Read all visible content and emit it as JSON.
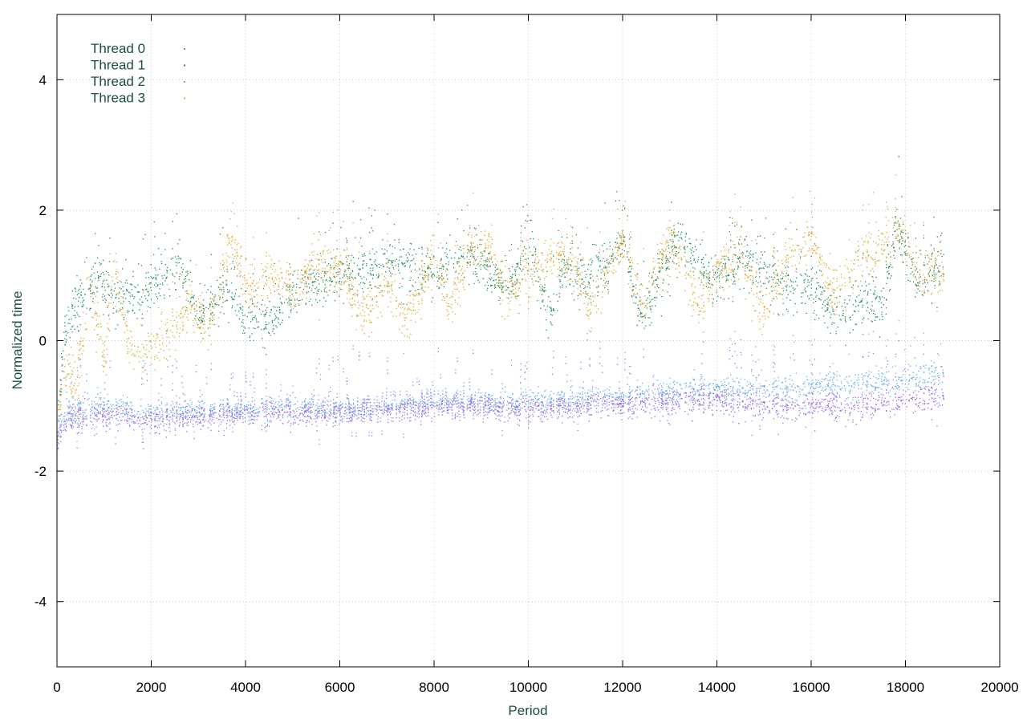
{
  "chart_data": {
    "type": "scatter",
    "title": "",
    "xlabel": "Period",
    "ylabel": "Normalized time",
    "xlim": [
      0,
      20000
    ],
    "ylim": [
      -5,
      5
    ],
    "xticks": [
      0,
      2000,
      4000,
      6000,
      8000,
      10000,
      12000,
      14000,
      16000,
      18000,
      20000
    ],
    "yticks": [
      -4,
      -2,
      0,
      2,
      4
    ],
    "grid": true,
    "legend": "top-left",
    "x_range_of_data": [
      0,
      18800
    ],
    "series": [
      {
        "name": "Thread 0",
        "color": "#9b6bea",
        "trend": [
          [
            0,
            -1.6
          ],
          [
            200,
            -1.2
          ],
          [
            1000,
            -1.15
          ],
          [
            2000,
            -1.2
          ],
          [
            3000,
            -1.15
          ],
          [
            4000,
            -1.1
          ],
          [
            5000,
            -1.1
          ],
          [
            6000,
            -1.1
          ],
          [
            7000,
            -1.05
          ],
          [
            8000,
            -1.0
          ],
          [
            9000,
            -1.0
          ],
          [
            10000,
            -1.05
          ],
          [
            11000,
            -1.0
          ],
          [
            12000,
            -0.95
          ],
          [
            13000,
            -0.95
          ],
          [
            14000,
            -0.9
          ],
          [
            15000,
            -1.0
          ],
          [
            16000,
            -1.0
          ],
          [
            17000,
            -1.0
          ],
          [
            18000,
            -0.9
          ],
          [
            18800,
            -0.85
          ]
        ],
        "spread": 0.1
      },
      {
        "name": "Thread 1",
        "color": "#1f8a5e",
        "trend": [
          [
            0,
            -1.5
          ],
          [
            150,
            0.2
          ],
          [
            400,
            0.5
          ],
          [
            800,
            0.9
          ],
          [
            1500,
            0.6
          ],
          [
            2000,
            0.8
          ],
          [
            2600,
            1.2
          ],
          [
            3000,
            0.4
          ],
          [
            3600,
            0.8
          ],
          [
            4000,
            0.3
          ],
          [
            4600,
            0.3
          ],
          [
            5000,
            0.8
          ],
          [
            5600,
            0.9
          ],
          [
            6000,
            1.0
          ],
          [
            6600,
            1.1
          ],
          [
            7000,
            1.2
          ],
          [
            7600,
            1.1
          ],
          [
            8000,
            1.0
          ],
          [
            8600,
            1.3
          ],
          [
            9000,
            1.2
          ],
          [
            9600,
            0.8
          ],
          [
            10000,
            1.6
          ],
          [
            10400,
            0.3
          ],
          [
            10800,
            1.2
          ],
          [
            11200,
            0.9
          ],
          [
            11600,
            1.1
          ],
          [
            12000,
            1.6
          ],
          [
            12400,
            0.3
          ],
          [
            12800,
            1.1
          ],
          [
            13200,
            1.5
          ],
          [
            13600,
            1.2
          ],
          [
            14000,
            0.9
          ],
          [
            14500,
            1.3
          ],
          [
            15000,
            1.1
          ],
          [
            15500,
            0.8
          ],
          [
            16000,
            0.8
          ],
          [
            16500,
            0.4
          ],
          [
            17000,
            0.6
          ],
          [
            17500,
            0.5
          ],
          [
            17800,
            1.8
          ],
          [
            18200,
            1.0
          ],
          [
            18800,
            1.1
          ]
        ],
        "spread": 0.18
      },
      {
        "name": "Thread 2",
        "color": "#6aaef0",
        "trend": [
          [
            0,
            -1.4
          ],
          [
            200,
            -1.1
          ],
          [
            1000,
            -1.05
          ],
          [
            2000,
            -1.1
          ],
          [
            3000,
            -1.05
          ],
          [
            4000,
            -1.05
          ],
          [
            5000,
            -1.0
          ],
          [
            6000,
            -1.05
          ],
          [
            7000,
            -1.0
          ],
          [
            8000,
            -0.95
          ],
          [
            9000,
            -0.95
          ],
          [
            10000,
            -0.95
          ],
          [
            11000,
            -0.9
          ],
          [
            12000,
            -0.85
          ],
          [
            13000,
            -0.8
          ],
          [
            14000,
            -0.75
          ],
          [
            15000,
            -0.75
          ],
          [
            16000,
            -0.7
          ],
          [
            17000,
            -0.65
          ],
          [
            18000,
            -0.6
          ],
          [
            18800,
            -0.5
          ]
        ],
        "spread": 0.1
      },
      {
        "name": "Thread 3",
        "color": "#e0a831",
        "trend": [
          [
            0,
            -1.5
          ],
          [
            150,
            -0.4
          ],
          [
            400,
            -0.7
          ],
          [
            700,
            0.8
          ],
          [
            1000,
            -0.4
          ],
          [
            1200,
            1.2
          ],
          [
            1500,
            -0.1
          ],
          [
            2000,
            -0.1
          ],
          [
            2500,
            0.2
          ],
          [
            2800,
            0.6
          ],
          [
            3200,
            0.2
          ],
          [
            3700,
            1.6
          ],
          [
            4000,
            0.8
          ],
          [
            4500,
            1.0
          ],
          [
            5000,
            0.8
          ],
          [
            5500,
            1.2
          ],
          [
            6000,
            1.1
          ],
          [
            6500,
            0.4
          ],
          [
            7000,
            0.9
          ],
          [
            7400,
            0.3
          ],
          [
            8000,
            1.3
          ],
          [
            8300,
            0.5
          ],
          [
            8800,
            1.4
          ],
          [
            9200,
            1.4
          ],
          [
            9500,
            0.7
          ],
          [
            10000,
            1.0
          ],
          [
            10500,
            1.3
          ],
          [
            11000,
            1.2
          ],
          [
            11300,
            0.4
          ],
          [
            12000,
            1.6
          ],
          [
            12400,
            0.5
          ],
          [
            13000,
            1.6
          ],
          [
            13600,
            0.5
          ],
          [
            14000,
            1.1
          ],
          [
            14500,
            1.3
          ],
          [
            15000,
            0.4
          ],
          [
            15500,
            1.3
          ],
          [
            16000,
            1.6
          ],
          [
            16400,
            0.7
          ],
          [
            17000,
            1.3
          ],
          [
            17500,
            1.4
          ],
          [
            17800,
            1.8
          ],
          [
            18200,
            1.1
          ],
          [
            18800,
            1.0
          ]
        ],
        "spread": 0.18
      }
    ]
  }
}
